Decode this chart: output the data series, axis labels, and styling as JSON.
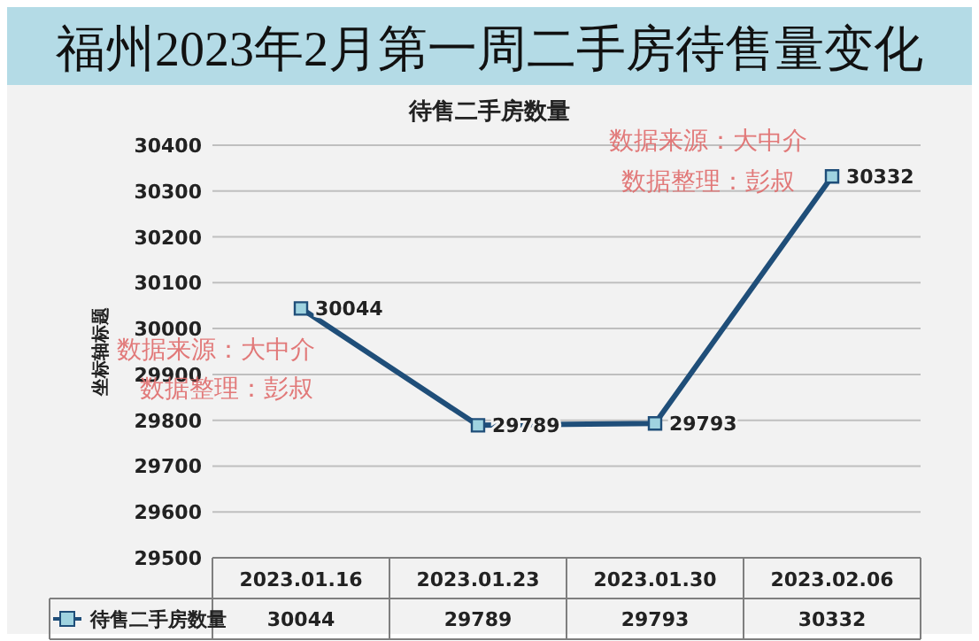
{
  "chart_data": {
    "type": "line",
    "title": "福州2023年2月第一周二手房待售量变化",
    "subtitle": "待售二手房数量",
    "ylabel": "坐标轴标题",
    "categories": [
      "2023.01.16",
      "2023.01.23",
      "2023.01.30",
      "2023.02.06"
    ],
    "series": [
      {
        "name": "待售二手房数量",
        "color": "#1f4e79",
        "values": [
          30044,
          29789,
          29793,
          30332
        ]
      }
    ],
    "ylim": [
      29500,
      30400
    ],
    "yticks": [
      29500,
      29600,
      29700,
      29800,
      29900,
      30000,
      30100,
      30200,
      30300,
      30400
    ],
    "grid": "y",
    "marker": "square",
    "line_style": "solid",
    "data_labels": true,
    "legend": "bottom",
    "annotations": [
      "数据来源：大中介",
      "数据整理：彭叔",
      "数据来源：大中介",
      "数据整理：彭叔",
      {
        "text": "30044",
        "x": "2023.01.16",
        "y": 30044
      },
      {
        "text": "29789",
        "x": "2023.01.23",
        "y": 29789
      },
      {
        "text": "29793",
        "x": "2023.01.30",
        "y": 29793
      },
      {
        "text": "30332",
        "x": "2023.02.06",
        "y": 30332
      }
    ]
  }
}
